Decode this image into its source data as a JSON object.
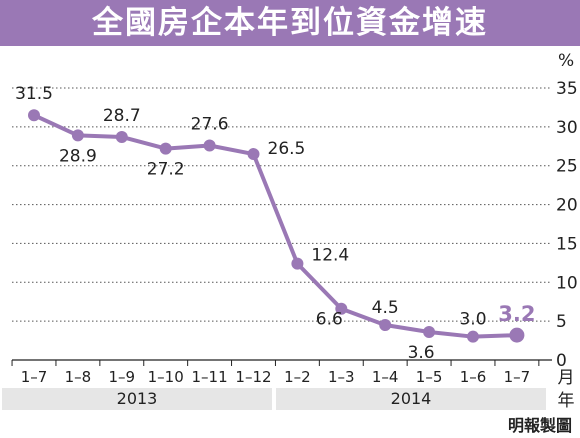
{
  "title": "全國房企本年到位資金增速",
  "credit": "明報製圖",
  "colors": {
    "accent": "#9a78b5",
    "line": "#9a78b5",
    "grid": "#555555"
  },
  "chart_data": {
    "type": "line",
    "title": "全國房企本年到位資金增速",
    "ylabel": "%",
    "xlabel": "月 年",
    "ylim": [
      0,
      35
    ],
    "yticks": [
      0,
      5,
      10,
      15,
      20,
      25,
      30,
      35
    ],
    "grid": true,
    "categories": [
      "1–7",
      "1–8",
      "1–9",
      "1–10",
      "1–11",
      "1–12",
      "1–2",
      "1–3",
      "1–4",
      "1–5",
      "1–6",
      "1–7"
    ],
    "groups": [
      {
        "label": "2013",
        "start": 0,
        "end": 5
      },
      {
        "label": "2014",
        "start": 6,
        "end": 11
      }
    ],
    "series": [
      {
        "values": [
          31.5,
          28.9,
          28.7,
          27.2,
          27.6,
          26.5,
          12.4,
          6.6,
          4.5,
          3.6,
          3.0,
          3.2
        ]
      }
    ],
    "data_labels": [
      "31.5",
      "28.9",
      "28.7",
      "27.2",
      "27.6",
      "26.5",
      "12.4",
      "6.6",
      "4.5",
      "3.6",
      "3.0",
      "3.2"
    ],
    "highlight_index": 11
  }
}
